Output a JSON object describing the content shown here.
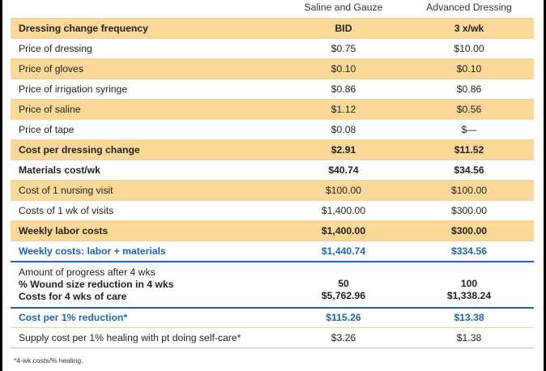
{
  "table": {
    "columns": [
      "",
      "Saline and Gauze",
      "Advanced Dressing"
    ],
    "rows": [
      {
        "label": "Dressing change frequency",
        "a": "BID",
        "b": "3 x/wk",
        "style": "shade bold"
      },
      {
        "label": "Price of dressing",
        "a": "$0.75",
        "b": "$10.00",
        "style": "plain"
      },
      {
        "label": "Price of gloves",
        "a": "$0.10",
        "b": "$0.10",
        "style": "shade"
      },
      {
        "label": "Price of irrigation syringe",
        "a": "$0.86",
        "b": "$0.86",
        "style": "plain"
      },
      {
        "label": "Price of saline",
        "a": "$1.12",
        "b": "$0.56",
        "style": "shade"
      },
      {
        "label": "Price of tape",
        "a": "$0.08",
        "b": "$—",
        "style": "plain"
      },
      {
        "label": "Cost per dressing change",
        "a": "$2.91",
        "b": "$11.52",
        "style": "shade bold"
      },
      {
        "label": "Materials cost/wk",
        "a": "$40.74",
        "b": "$34.56",
        "style": "plain bold"
      },
      {
        "label": "Cost of 1 nursing visit",
        "a": "$100.00",
        "b": "$100.00",
        "style": "shade"
      },
      {
        "label": "Costs of 1 wk of visits",
        "a": "$1,400.00",
        "b": "$300.00",
        "style": "plain"
      },
      {
        "label": "Weekly labor costs",
        "a": "$1,400.00",
        "b": "$300.00",
        "style": "shade bold"
      },
      {
        "label": "Weekly costs: labor + materials",
        "a": "$1,440.74",
        "b": "$334.56",
        "style": "plain blue"
      }
    ],
    "progress": {
      "heading": "Amount of progress after 4 wks",
      "line1": "% Wound size reduction in 4 wks",
      "line2": "Costs for 4 wks of care",
      "a1": "50",
      "a2": "$5,762.96",
      "b1": "100",
      "b2": "$1,338.24"
    },
    "tail_rows": [
      {
        "label": "Cost per 1% reduction*",
        "a": "$115.26",
        "b": "$13.38",
        "style": "plain blue"
      },
      {
        "label": "Supply cost per 1% healing with pt doing self-care*",
        "a": "$3.26",
        "b": "$1.38",
        "style": "plain"
      }
    ]
  },
  "footnote": "*4-wk costs/% healing."
}
